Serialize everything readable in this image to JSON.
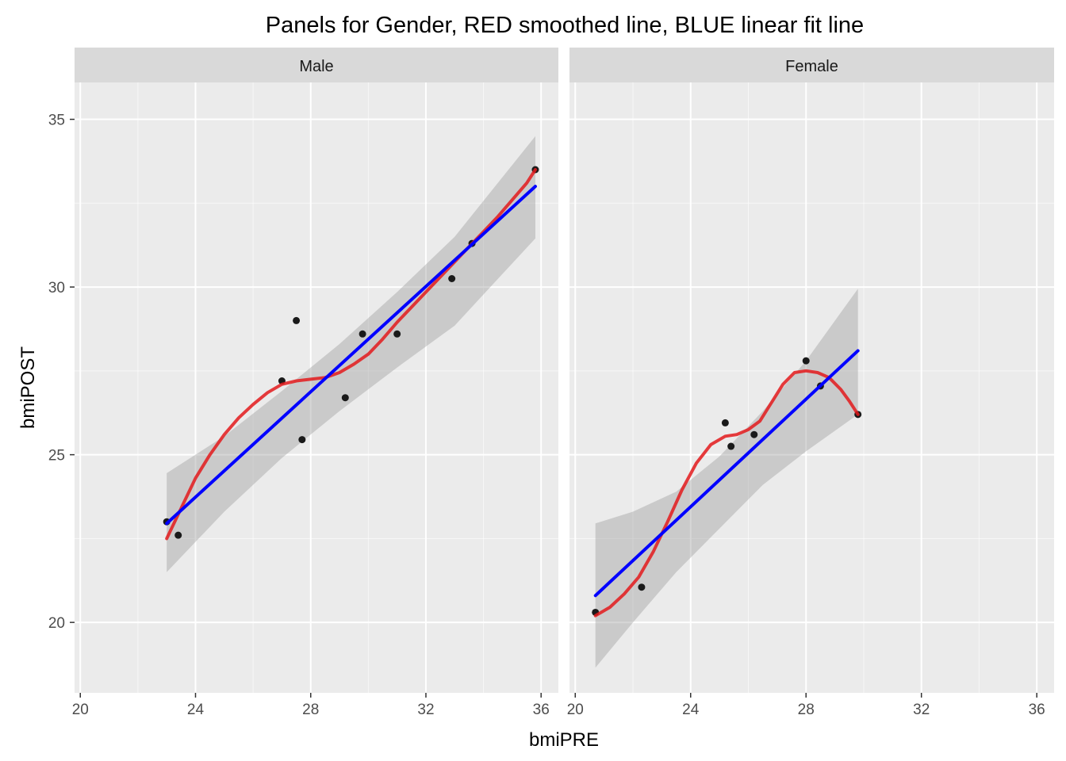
{
  "chart_data": {
    "type": "scatter",
    "title": "Panels for Gender, RED smoothed line, BLUE linear fit line",
    "xlabel": "bmiPRE",
    "ylabel": "bmiPOST",
    "xlim": [
      19.8,
      36.6
    ],
    "ylim": [
      17.9,
      36.1
    ],
    "x_ticks": [
      20,
      24,
      28,
      32,
      36
    ],
    "y_ticks": [
      20,
      25,
      30,
      35
    ],
    "x_tick_labels": [
      "20",
      "24",
      "28",
      "32",
      "36"
    ],
    "y_tick_labels": [
      "20",
      "25",
      "30",
      "35"
    ],
    "grid": true,
    "colors": {
      "panel_bg": "#ebebeb",
      "strip_bg": "#d9d9d9",
      "grid_major": "#ffffff",
      "points": "#1a1a1a",
      "smooth": "#e31a1c",
      "linear": "#0000ff",
      "ribbon": "#999999"
    },
    "panels": [
      {
        "label": "Male",
        "points": [
          {
            "x": 23.0,
            "y": 23.0
          },
          {
            "x": 23.4,
            "y": 22.6
          },
          {
            "x": 27.0,
            "y": 27.2
          },
          {
            "x": 27.5,
            "y": 29.0
          },
          {
            "x": 27.7,
            "y": 25.45
          },
          {
            "x": 29.2,
            "y": 26.7
          },
          {
            "x": 29.8,
            "y": 28.6
          },
          {
            "x": 31.0,
            "y": 28.6
          },
          {
            "x": 32.9,
            "y": 30.25
          },
          {
            "x": 33.6,
            "y": 31.3
          },
          {
            "x": 35.8,
            "y": 33.5
          }
        ],
        "linear_fit": {
          "x": [
            23.0,
            35.8
          ],
          "y": [
            22.95,
            33.0
          ]
        },
        "linear_band": {
          "x": [
            23.0,
            25.0,
            27.0,
            29.0,
            31.0,
            33.0,
            35.8
          ],
          "upper": [
            24.45,
            25.55,
            26.9,
            28.3,
            29.85,
            31.5,
            34.5
          ],
          "lower": [
            21.5,
            23.3,
            24.9,
            26.3,
            27.6,
            28.85,
            31.45
          ]
        },
        "smooth": {
          "x": [
            23.0,
            23.5,
            24.0,
            24.5,
            25.0,
            25.5,
            26.0,
            26.5,
            27.0,
            27.5,
            28.0,
            28.5,
            29.0,
            29.5,
            30.0,
            30.5,
            31.0,
            31.5,
            32.0,
            32.5,
            33.0,
            33.5,
            34.0,
            34.5,
            35.0,
            35.5,
            35.8
          ],
          "y": [
            22.5,
            23.4,
            24.3,
            25.0,
            25.6,
            26.1,
            26.5,
            26.85,
            27.1,
            27.2,
            27.25,
            27.3,
            27.45,
            27.7,
            28.0,
            28.45,
            28.95,
            29.4,
            29.85,
            30.3,
            30.75,
            31.2,
            31.65,
            32.1,
            32.6,
            33.1,
            33.5
          ]
        }
      },
      {
        "label": "Female",
        "points": [
          {
            "x": 20.7,
            "y": 20.3
          },
          {
            "x": 22.3,
            "y": 21.05
          },
          {
            "x": 25.2,
            "y": 25.95
          },
          {
            "x": 25.4,
            "y": 25.25
          },
          {
            "x": 26.2,
            "y": 25.6
          },
          {
            "x": 28.0,
            "y": 27.8
          },
          {
            "x": 28.5,
            "y": 27.05
          },
          {
            "x": 29.8,
            "y": 26.2
          }
        ],
        "linear_fit": {
          "x": [
            20.7,
            29.8
          ],
          "y": [
            20.8,
            28.1
          ]
        },
        "linear_band": {
          "x": [
            20.7,
            22.0,
            23.5,
            25.0,
            26.5,
            28.0,
            29.8
          ],
          "upper": [
            22.95,
            23.3,
            23.9,
            24.95,
            26.3,
            27.8,
            29.95
          ],
          "lower": [
            18.65,
            20.0,
            21.5,
            22.8,
            24.1,
            25.1,
            26.2
          ]
        },
        "smooth": {
          "x": [
            20.7,
            21.2,
            21.7,
            22.2,
            22.7,
            23.2,
            23.7,
            24.2,
            24.7,
            25.2,
            25.6,
            26.0,
            26.4,
            26.8,
            27.2,
            27.6,
            28.0,
            28.4,
            28.8,
            29.2,
            29.5,
            29.8
          ],
          "y": [
            20.2,
            20.45,
            20.85,
            21.35,
            22.1,
            23.0,
            23.95,
            24.75,
            25.3,
            25.55,
            25.6,
            25.75,
            26.0,
            26.55,
            27.1,
            27.45,
            27.5,
            27.45,
            27.3,
            26.95,
            26.6,
            26.2
          ]
        }
      }
    ]
  }
}
